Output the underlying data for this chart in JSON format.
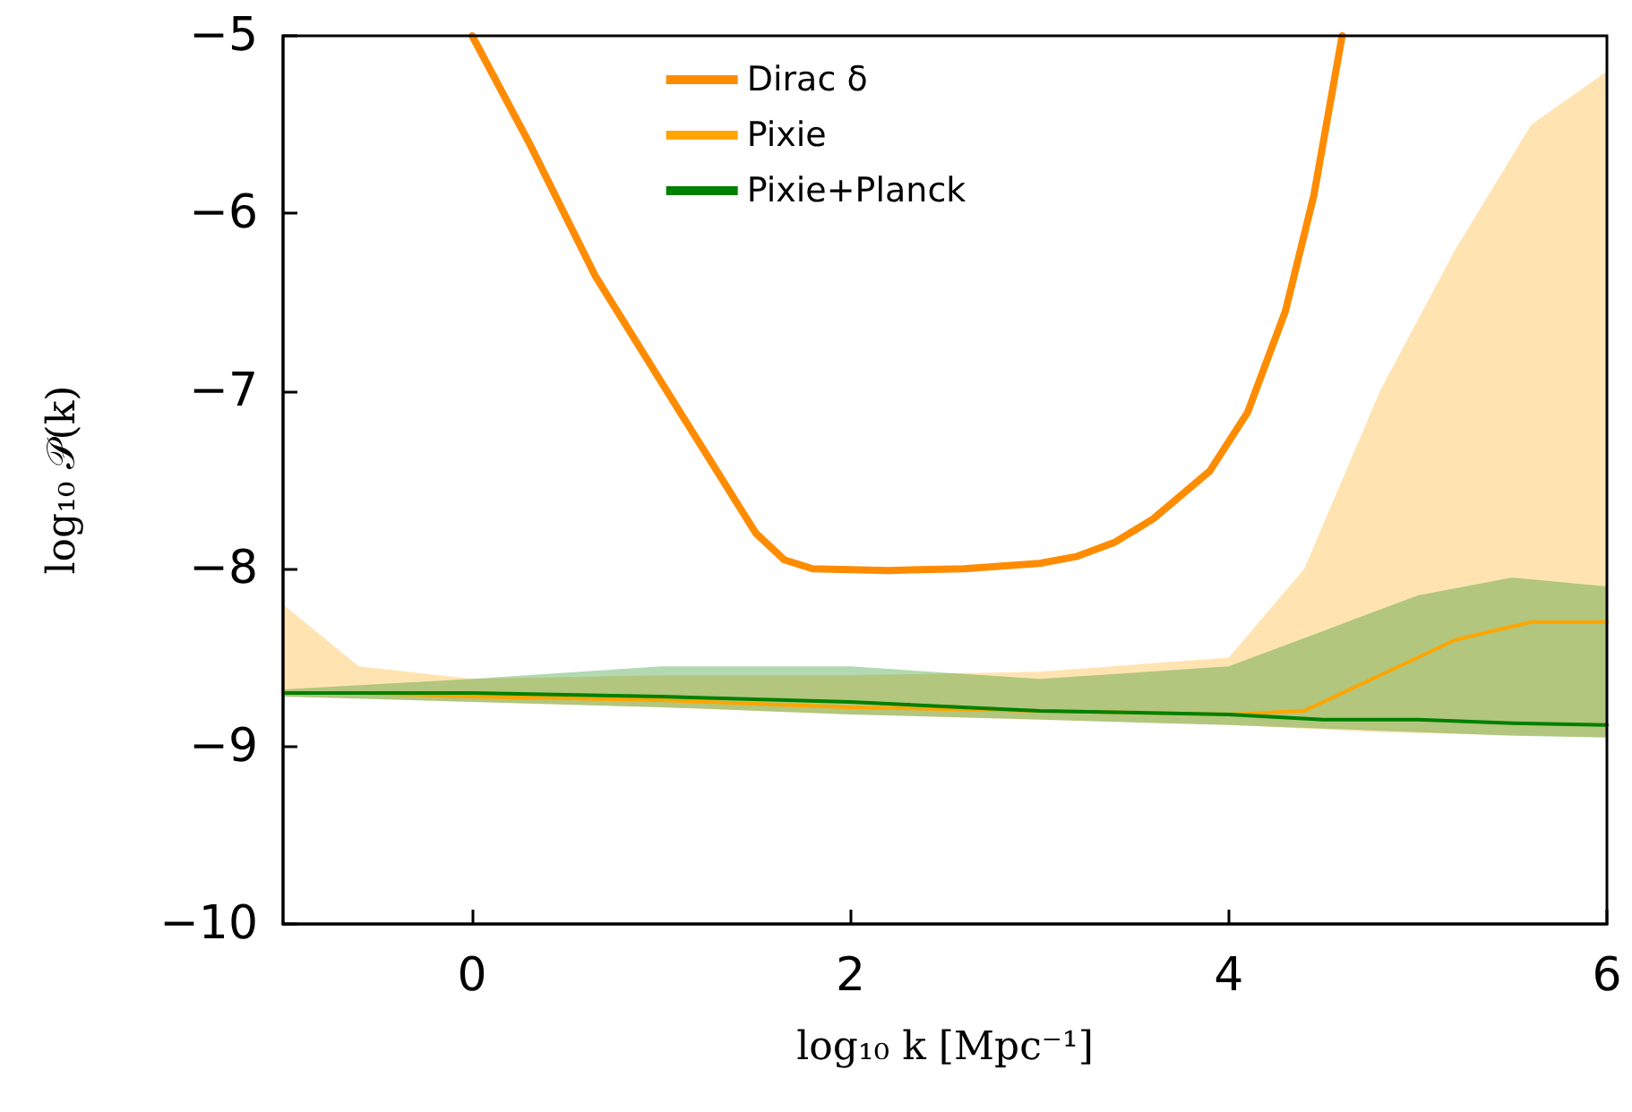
{
  "chart_data": {
    "type": "line",
    "xlabel": "log₁₀ k [Mpc⁻¹]",
    "ylabel": "log₁₀ 𝒫(k)",
    "xlim": [
      -1,
      6
    ],
    "ylim": [
      -10,
      -5
    ],
    "xticks": [
      0,
      2,
      4,
      6
    ],
    "yticks": [
      -10,
      -9,
      -8,
      -7,
      -6,
      -5
    ],
    "legend": "top",
    "grid": false,
    "series": [
      {
        "name": "Dirac δ",
        "type": "line",
        "color": "#ff8c00",
        "x": [
          0,
          0.3,
          0.65,
          1.1,
          1.5,
          1.65,
          1.8,
          2.2,
          2.6,
          3.0,
          3.2,
          3.4,
          3.6,
          3.9,
          4.1,
          4.3,
          4.45,
          4.6
        ],
        "values": [
          -5,
          -5.6,
          -6.35,
          -7.12,
          -7.8,
          -7.95,
          -8.0,
          -8.01,
          -8.0,
          -7.97,
          -7.93,
          -7.85,
          -7.72,
          -7.45,
          -7.12,
          -6.55,
          -5.9,
          -5.0
        ]
      },
      {
        "name": "Pixie",
        "type": "line",
        "color": "#ffa500",
        "x": [
          -1,
          -0.6,
          0,
          1,
          2,
          3,
          4,
          4.4,
          4.8,
          5.2,
          5.6,
          6
        ],
        "values": [
          -8.7,
          -8.7,
          -8.72,
          -8.74,
          -8.78,
          -8.8,
          -8.82,
          -8.8,
          -8.6,
          -8.4,
          -8.3,
          -8.3
        ],
        "upper": [
          -8.2,
          -8.55,
          -8.62,
          -8.6,
          -8.6,
          -8.58,
          -8.5,
          -8.0,
          -7.0,
          -6.2,
          -5.5,
          -5.2
        ],
        "lower": [
          -8.72,
          -8.73,
          -8.75,
          -8.78,
          -8.82,
          -8.85,
          -8.88,
          -8.9,
          -8.92,
          -8.93,
          -8.94,
          -8.95
        ]
      },
      {
        "name": "Pixie+Planck",
        "type": "line",
        "color": "#008000",
        "x": [
          -1,
          0,
          1,
          2,
          3,
          4,
          4.5,
          5,
          5.5,
          6
        ],
        "values": [
          -8.7,
          -8.7,
          -8.72,
          -8.75,
          -8.8,
          -8.82,
          -8.85,
          -8.85,
          -8.87,
          -8.88
        ],
        "upper": [
          -8.68,
          -8.62,
          -8.55,
          -8.55,
          -8.62,
          -8.55,
          -8.35,
          -8.15,
          -8.05,
          -8.1
        ],
        "lower": [
          -8.72,
          -8.75,
          -8.78,
          -8.82,
          -8.85,
          -8.88,
          -8.9,
          -8.92,
          -8.94,
          -8.95
        ]
      }
    ]
  }
}
